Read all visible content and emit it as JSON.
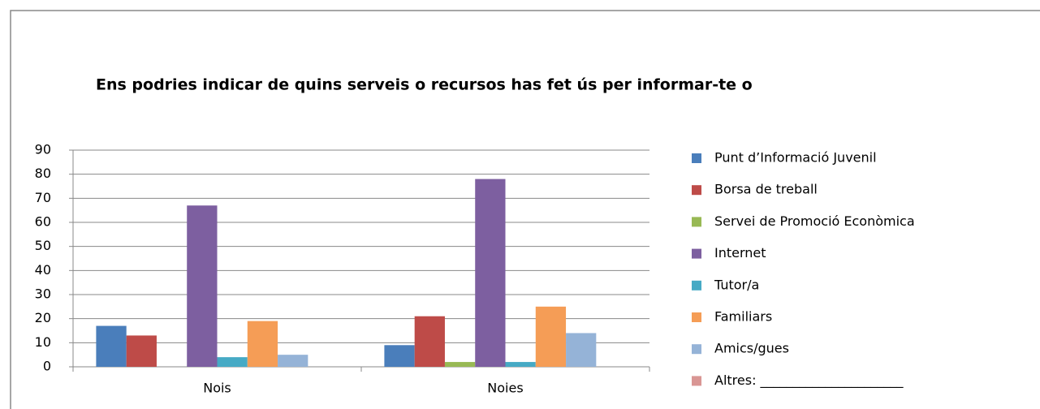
{
  "chart_data": {
    "type": "bar",
    "title": "Ens podries indicar de quins serveis o recursos has fet ús per informar-te o",
    "categories": [
      "Nois",
      "Noies"
    ],
    "series": [
      {
        "name": "Punt d’Informació Juvenil",
        "color": "#4a7ebb",
        "values": [
          17,
          9
        ]
      },
      {
        "name": "Borsa de treball",
        "color": "#be4b48",
        "values": [
          13,
          21
        ]
      },
      {
        "name": "Servei de Promoció Econòmica",
        "color": "#98b954",
        "values": [
          0,
          2
        ]
      },
      {
        "name": "Internet",
        "color": "#7d5fa0",
        "values": [
          67,
          78
        ]
      },
      {
        "name": "Tutor/a",
        "color": "#46aac5",
        "values": [
          4,
          2
        ]
      },
      {
        "name": "Familiars",
        "color": "#f59d56",
        "values": [
          19,
          25
        ]
      },
      {
        "name": "Amics/gues",
        "color": "#95b3d7",
        "values": [
          5,
          14
        ]
      },
      {
        "name": "Altres: ______________________",
        "color": "#d99694",
        "values": [
          0,
          0
        ]
      }
    ],
    "ylim": [
      0,
      90
    ],
    "yticks": [
      0,
      10,
      20,
      30,
      40,
      50,
      60,
      70,
      80,
      90
    ],
    "grid": true,
    "legend": "right"
  }
}
